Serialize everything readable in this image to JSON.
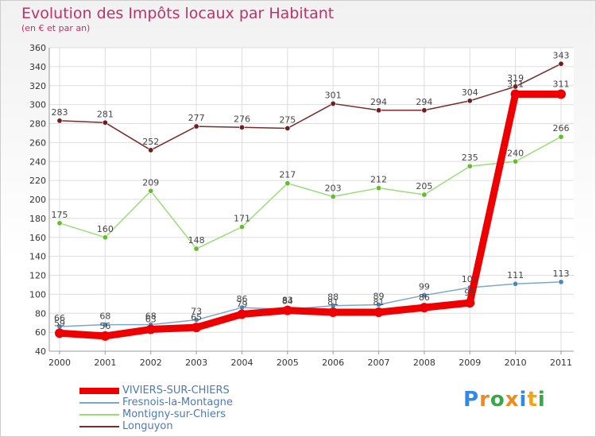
{
  "chart_data": {
    "type": "line",
    "title": "Evolution des Impôts locaux par Habitant",
    "subtitle": "(en € et par an)",
    "xlabel": "",
    "ylabel": "",
    "ylim": [
      40,
      360
    ],
    "yticks": [
      40,
      60,
      80,
      100,
      120,
      140,
      160,
      180,
      200,
      220,
      240,
      260,
      280,
      300,
      320,
      340,
      360
    ],
    "categories": [
      "2000",
      "2001",
      "2002",
      "2003",
      "2004",
      "2005",
      "2006",
      "2007",
      "2008",
      "2009",
      "2010",
      "2011"
    ],
    "grid": true,
    "series": [
      {
        "name": "Longuyon",
        "color": "#7a2a2a",
        "marker": "#6b1f1f",
        "values": [
          283,
          281,
          252,
          277,
          276,
          275,
          301,
          294,
          294,
          304,
          319,
          343
        ]
      },
      {
        "name": "Montigny-sur-Chiers",
        "color": "#99dd77",
        "marker": "#66bb33",
        "values": [
          175,
          160,
          209,
          148,
          171,
          217,
          203,
          212,
          205,
          235,
          240,
          266
        ]
      },
      {
        "name": "Fresnois-la-Montagne",
        "color": "#7ba7cc",
        "marker": "#4d86b8",
        "values": [
          66,
          68,
          68,
          73,
          86,
          84,
          88,
          89,
          99,
          107,
          111,
          113
        ]
      },
      {
        "name": "VIVIERS-SUR-CHIERS",
        "color": "#ee0000",
        "marker": "#ee0000",
        "values": [
          59,
          56,
          63,
          65,
          79,
          83,
          81,
          81,
          86,
          91,
          311,
          311
        ]
      }
    ],
    "legend": [
      {
        "name": "VIVIERS-SUR-CHIERS",
        "color": "#ee0000"
      },
      {
        "name": "Fresnois-la-Montagne",
        "color": "#7ba7cc"
      },
      {
        "name": "Montigny-sur-Chiers",
        "color": "#99dd77"
      },
      {
        "name": "Longuyon",
        "color": "#7a2a2a"
      }
    ]
  },
  "logo": {
    "letters": [
      "P",
      "r",
      "o",
      "x",
      "i",
      "t",
      "i"
    ],
    "colors": [
      "#2e8ae6",
      "#f08a1c",
      "#3aa64a",
      "#f08a1c",
      "#2e8ae6",
      "#f0a31c",
      "#3aa64a"
    ]
  }
}
